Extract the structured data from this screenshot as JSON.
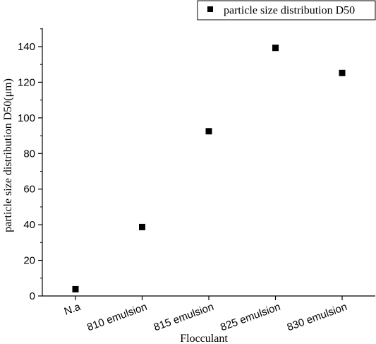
{
  "chart_data": {
    "type": "scatter",
    "categories": [
      "N.a",
      "810 emulsion",
      "815 emulsion",
      "825 emulsion",
      "830 emulsion"
    ],
    "series": [
      {
        "name": "particle size distribution D50",
        "values": [
          3.8,
          38.7,
          92.5,
          139.3,
          125.2
        ],
        "marker": "square",
        "color": "#000000"
      }
    ],
    "xlabel": "Flocculant",
    "ylabel": "particle size distribution D50(μm)",
    "ylim": [
      0,
      150
    ],
    "yticks": [
      0,
      20,
      40,
      60,
      80,
      100,
      120,
      140
    ],
    "ytick_labels": [
      "0",
      "20",
      "40",
      "60",
      "80",
      "100",
      "120",
      "140"
    ],
    "grid": false,
    "legend": "top-right"
  }
}
